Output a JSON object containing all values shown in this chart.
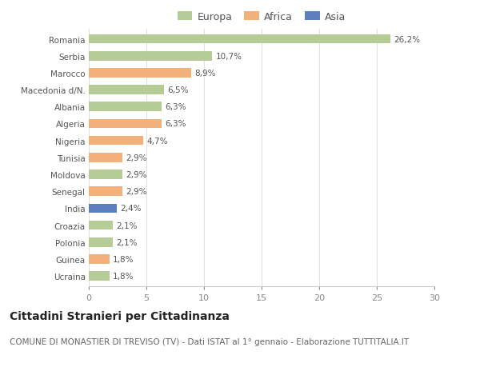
{
  "categories": [
    "Romania",
    "Serbia",
    "Marocco",
    "Macedonia d/N.",
    "Albania",
    "Algeria",
    "Nigeria",
    "Tunisia",
    "Moldova",
    "Senegal",
    "India",
    "Croazia",
    "Polonia",
    "Guinea",
    "Ucraina"
  ],
  "values": [
    26.2,
    10.7,
    8.9,
    6.5,
    6.3,
    6.3,
    4.7,
    2.9,
    2.9,
    2.9,
    2.4,
    2.1,
    2.1,
    1.8,
    1.8
  ],
  "labels": [
    "26,2%",
    "10,7%",
    "8,9%",
    "6,5%",
    "6,3%",
    "6,3%",
    "4,7%",
    "2,9%",
    "2,9%",
    "2,9%",
    "2,4%",
    "2,1%",
    "2,1%",
    "1,8%",
    "1,8%"
  ],
  "continent": [
    "Europa",
    "Europa",
    "Africa",
    "Europa",
    "Europa",
    "Africa",
    "Africa",
    "Africa",
    "Europa",
    "Africa",
    "Asia",
    "Europa",
    "Europa",
    "Africa",
    "Europa"
  ],
  "colors": {
    "Europa": "#b5cc96",
    "Africa": "#f2b07a",
    "Asia": "#5b7fbf"
  },
  "legend": [
    "Europa",
    "Africa",
    "Asia"
  ],
  "legend_colors": [
    "#b5cc96",
    "#f2b07a",
    "#5b7fbf"
  ],
  "xlim": [
    0,
    30
  ],
  "xticks": [
    0,
    5,
    10,
    15,
    20,
    25,
    30
  ],
  "title": "Cittadini Stranieri per Cittadinanza",
  "subtitle": "COMUNE DI MONASTIER DI TREVISO (TV) - Dati ISTAT al 1° gennaio - Elaborazione TUTTITALIA.IT",
  "background_color": "#ffffff",
  "bar_height": 0.55,
  "title_fontsize": 10,
  "subtitle_fontsize": 7.5,
  "label_fontsize": 7.5,
  "ytick_fontsize": 7.5,
  "xtick_fontsize": 8
}
